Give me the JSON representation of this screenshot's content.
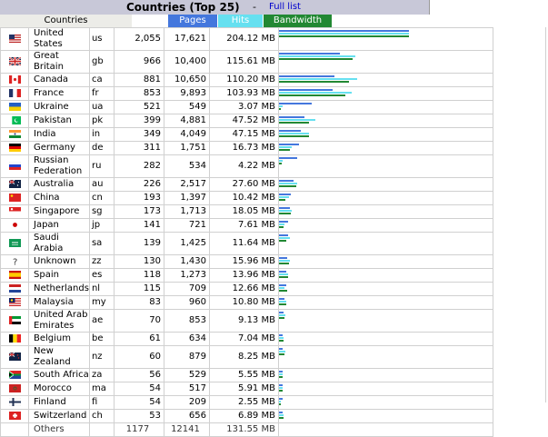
{
  "header": {
    "title": "Countries (Top 25)",
    "separator": "-",
    "full_list": "Full list"
  },
  "columns": {
    "countries": "Countries",
    "pages": "Pages",
    "hits": "Hits",
    "bandwidth": "Bandwidth"
  },
  "colors": {
    "pages": "#4477dd",
    "hits": "#66e0f0",
    "bandwidth": "#228833"
  },
  "rows": [
    {
      "name": "United States",
      "code": "us",
      "pages": "2,055",
      "hits": "17,621",
      "bandwidth": "204.12 MB",
      "pages_n": 2055,
      "hits_n": 17621,
      "bw_n": 204.12,
      "flag": "flag-us-icon"
    },
    {
      "name": "Great Britain",
      "code": "gb",
      "pages": "966",
      "hits": "10,400",
      "bandwidth": "115.61 MB",
      "pages_n": 966,
      "hits_n": 10400,
      "bw_n": 115.61,
      "flag": "flag-gb-icon"
    },
    {
      "name": "Canada",
      "code": "ca",
      "pages": "881",
      "hits": "10,650",
      "bandwidth": "110.20 MB",
      "pages_n": 881,
      "hits_n": 10650,
      "bw_n": 110.2,
      "flag": "flag-ca-icon"
    },
    {
      "name": "France",
      "code": "fr",
      "pages": "853",
      "hits": "9,893",
      "bandwidth": "103.93 MB",
      "pages_n": 853,
      "hits_n": 9893,
      "bw_n": 103.93,
      "flag": "flag-fr-icon"
    },
    {
      "name": "Ukraine",
      "code": "ua",
      "pages": "521",
      "hits": "549",
      "bandwidth": "3.07 MB",
      "pages_n": 521,
      "hits_n": 549,
      "bw_n": 3.07,
      "flag": "flag-ua-icon"
    },
    {
      "name": "Pakistan",
      "code": "pk",
      "pages": "399",
      "hits": "4,881",
      "bandwidth": "47.52 MB",
      "pages_n": 399,
      "hits_n": 4881,
      "bw_n": 47.52,
      "flag": "flag-pk-icon"
    },
    {
      "name": "India",
      "code": "in",
      "pages": "349",
      "hits": "4,049",
      "bandwidth": "47.15 MB",
      "pages_n": 349,
      "hits_n": 4049,
      "bw_n": 47.15,
      "flag": "flag-in-icon"
    },
    {
      "name": "Germany",
      "code": "de",
      "pages": "311",
      "hits": "1,751",
      "bandwidth": "16.73 MB",
      "pages_n": 311,
      "hits_n": 1751,
      "bw_n": 16.73,
      "flag": "flag-de-icon"
    },
    {
      "name": "Russian Federation",
      "code": "ru",
      "pages": "282",
      "hits": "534",
      "bandwidth": "4.22 MB",
      "pages_n": 282,
      "hits_n": 534,
      "bw_n": 4.22,
      "flag": "flag-ru-icon"
    },
    {
      "name": "Australia",
      "code": "au",
      "pages": "226",
      "hits": "2,517",
      "bandwidth": "27.60 MB",
      "pages_n": 226,
      "hits_n": 2517,
      "bw_n": 27.6,
      "flag": "flag-au-icon"
    },
    {
      "name": "China",
      "code": "cn",
      "pages": "193",
      "hits": "1,397",
      "bandwidth": "10.42 MB",
      "pages_n": 193,
      "hits_n": 1397,
      "bw_n": 10.42,
      "flag": "flag-cn-icon"
    },
    {
      "name": "Singapore",
      "code": "sg",
      "pages": "173",
      "hits": "1,713",
      "bandwidth": "18.05 MB",
      "pages_n": 173,
      "hits_n": 1713,
      "bw_n": 18.05,
      "flag": "flag-sg-icon"
    },
    {
      "name": "Japan",
      "code": "jp",
      "pages": "141",
      "hits": "721",
      "bandwidth": "7.61 MB",
      "pages_n": 141,
      "hits_n": 721,
      "bw_n": 7.61,
      "flag": "flag-jp-icon"
    },
    {
      "name": "Saudi Arabia",
      "code": "sa",
      "pages": "139",
      "hits": "1,425",
      "bandwidth": "11.64 MB",
      "pages_n": 139,
      "hits_n": 1425,
      "bw_n": 11.64,
      "flag": "flag-sa-icon"
    },
    {
      "name": "Unknown",
      "code": "zz",
      "pages": "130",
      "hits": "1,430",
      "bandwidth": "15.96 MB",
      "pages_n": 130,
      "hits_n": 1430,
      "bw_n": 15.96,
      "flag": "question-mark-icon"
    },
    {
      "name": "Spain",
      "code": "es",
      "pages": "118",
      "hits": "1,273",
      "bandwidth": "13.96 MB",
      "pages_n": 118,
      "hits_n": 1273,
      "bw_n": 13.96,
      "flag": "flag-es-icon"
    },
    {
      "name": "Netherlands",
      "code": "nl",
      "pages": "115",
      "hits": "709",
      "bandwidth": "12.66 MB",
      "pages_n": 115,
      "hits_n": 709,
      "bw_n": 12.66,
      "flag": "flag-nl-icon"
    },
    {
      "name": "Malaysia",
      "code": "my",
      "pages": "83",
      "hits": "960",
      "bandwidth": "10.80 MB",
      "pages_n": 83,
      "hits_n": 960,
      "bw_n": 10.8,
      "flag": "flag-my-icon"
    },
    {
      "name": "United Arab Emirates",
      "code": "ae",
      "pages": "70",
      "hits": "853",
      "bandwidth": "9.13 MB",
      "pages_n": 70,
      "hits_n": 853,
      "bw_n": 9.13,
      "flag": "flag-ae-icon"
    },
    {
      "name": "Belgium",
      "code": "be",
      "pages": "61",
      "hits": "634",
      "bandwidth": "7.04 MB",
      "pages_n": 61,
      "hits_n": 634,
      "bw_n": 7.04,
      "flag": "flag-be-icon"
    },
    {
      "name": "New Zealand",
      "code": "nz",
      "pages": "60",
      "hits": "879",
      "bandwidth": "8.25 MB",
      "pages_n": 60,
      "hits_n": 879,
      "bw_n": 8.25,
      "flag": "flag-nz-icon"
    },
    {
      "name": "South Africa",
      "code": "za",
      "pages": "56",
      "hits": "529",
      "bandwidth": "5.55 MB",
      "pages_n": 56,
      "hits_n": 529,
      "bw_n": 5.55,
      "flag": "flag-za-icon"
    },
    {
      "name": "Morocco",
      "code": "ma",
      "pages": "54",
      "hits": "517",
      "bandwidth": "5.91 MB",
      "pages_n": 54,
      "hits_n": 517,
      "bw_n": 5.91,
      "flag": "flag-ma-icon"
    },
    {
      "name": "Finland",
      "code": "fi",
      "pages": "54",
      "hits": "209",
      "bandwidth": "2.55 MB",
      "pages_n": 54,
      "hits_n": 209,
      "bw_n": 2.55,
      "flag": "flag-fi-icon"
    },
    {
      "name": "Switzerland",
      "code": "ch",
      "pages": "53",
      "hits": "656",
      "bandwidth": "6.89 MB",
      "pages_n": 53,
      "hits_n": 656,
      "bw_n": 6.89,
      "flag": "flag-ch-icon"
    }
  ],
  "others": {
    "label": "Others",
    "pages": "1177",
    "hits": "12141",
    "bandwidth": "131.55 MB"
  }
}
